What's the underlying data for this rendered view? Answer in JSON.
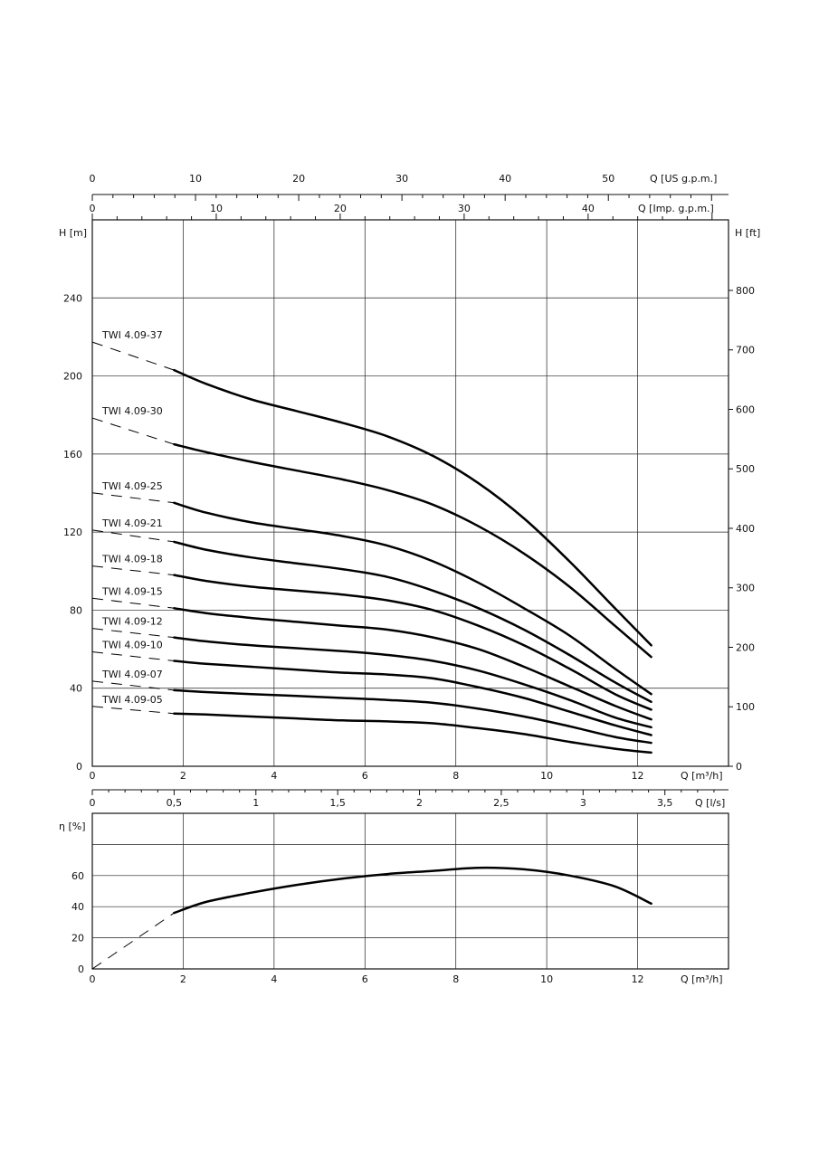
{
  "chart_data": [
    {
      "type": "line",
      "x_label": "Q [m³/h]",
      "y_label_left": "H [m]",
      "y_label_right": "H [ft]",
      "xlim": [
        0,
        14
      ],
      "ylim": [
        0,
        280
      ],
      "x_ticks": [
        "0",
        "2",
        "4",
        "6",
        "8",
        "10",
        "12"
      ],
      "y_ticks_left": [
        "0",
        "40",
        "80",
        "120",
        "160",
        "200",
        "240"
      ],
      "y_ticks_right": [
        "0",
        "100",
        "200",
        "300",
        "400",
        "500",
        "600",
        "700",
        "800"
      ],
      "grid": true,
      "top_axis_us": {
        "label": "Q [US g.p.m.]",
        "ticks": [
          "0",
          "10",
          "20",
          "30",
          "40",
          "50"
        ]
      },
      "top_axis_imp": {
        "label": "Q [Imp. g.p.m.]",
        "ticks": [
          "0",
          "10",
          "20",
          "30",
          "40"
        ]
      },
      "bottom_axis_ls": {
        "label": "Q [l/s]",
        "ticks": [
          "0",
          "0,5",
          "1",
          "1,5",
          "2",
          "2,5",
          "3",
          "3,5"
        ]
      },
      "x": [
        1.8,
        2.5,
        3.5,
        4.5,
        5.5,
        6.5,
        7.5,
        8.5,
        9.5,
        10.5,
        11.5,
        12.3
      ],
      "series": [
        {
          "name": "TWI 4.09-37",
          "values": [
            203,
            196,
            188,
            182,
            176,
            169,
            159,
            145,
            127,
            105,
            81,
            62
          ]
        },
        {
          "name": "TWI 4.09-30",
          "values": [
            165,
            161,
            156,
            151.5,
            147,
            141.5,
            134,
            123,
            109,
            92,
            72,
            56
          ]
        },
        {
          "name": "TWI 4.09-25",
          "values": [
            135,
            130,
            125,
            121.5,
            118,
            113,
            105,
            94,
            81,
            67,
            50,
            37
          ]
        },
        {
          "name": "TWI 4.09-21",
          "values": [
            115,
            111,
            107,
            104,
            101,
            97,
            90,
            81,
            70,
            57,
            43,
            33
          ]
        },
        {
          "name": "TWI 4.09-18",
          "values": [
            98,
            95,
            92,
            90,
            88,
            85,
            80,
            72,
            62,
            50,
            37,
            29
          ]
        },
        {
          "name": "TWI 4.09-15",
          "values": [
            81,
            78.5,
            76,
            74,
            72,
            70,
            66,
            60,
            51,
            41,
            31,
            24
          ]
        },
        {
          "name": "TWI 4.09-12",
          "values": [
            66,
            64,
            62,
            60.5,
            59,
            57,
            54,
            49,
            42,
            34,
            25,
            20
          ]
        },
        {
          "name": "TWI 4.09-10",
          "values": [
            54,
            52.5,
            51,
            49.5,
            48,
            47,
            45,
            40.5,
            35,
            28,
            21,
            16
          ]
        },
        {
          "name": "TWI 4.09-07",
          "values": [
            39,
            38,
            37,
            36,
            35,
            34,
            32.5,
            29.5,
            25.5,
            20.5,
            15,
            12
          ]
        },
        {
          "name": "TWI 4.09-05",
          "values": [
            27,
            26.5,
            25.5,
            24.5,
            23.5,
            23,
            22,
            19.5,
            16.5,
            12.5,
            9,
            7
          ]
        }
      ]
    },
    {
      "type": "line",
      "x_label": "Q [m³/h]",
      "y_label": "η [%]",
      "xlim": [
        0,
        14
      ],
      "ylim": [
        0,
        100
      ],
      "x_ticks": [
        "0",
        "2",
        "4",
        "6",
        "8",
        "10",
        "12"
      ],
      "y_ticks": [
        "0",
        "20",
        "40",
        "60"
      ],
      "grid": true,
      "x": [
        1.8,
        2.5,
        3.5,
        4.5,
        5.5,
        6.5,
        7.5,
        8.5,
        9.5,
        10.5,
        11.5,
        12.3
      ],
      "values": [
        36,
        43,
        49,
        54,
        58,
        61,
        63,
        65,
        64,
        60,
        53,
        42
      ]
    }
  ]
}
